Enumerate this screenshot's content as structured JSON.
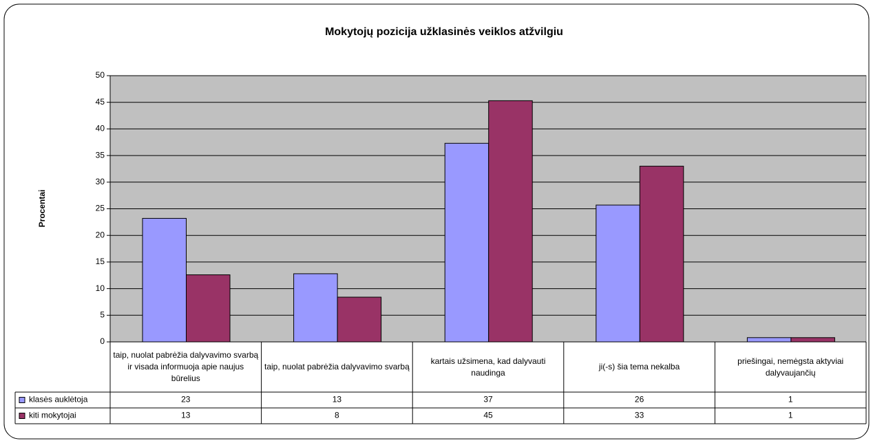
{
  "chart_data": {
    "type": "bar",
    "title": "Mokytojų pozicija užklasinės veiklos atžvilgiu",
    "y_label": "Procentai",
    "categories": [
      "taip, nuolat pabrėžia dalyvavimo svarbą ir visada informuoja apie naujus būrelius",
      "taip, nuolat pabrėžia dalyvavimo svarbą",
      "kartais užsimena, kad dalyvauti naudinga",
      "ji(-s) šia tema nekalba",
      "priešingai, nemėgsta aktyviai dalyvaujančių"
    ],
    "series": [
      {
        "name": "klasės auklėtoja",
        "color": "#9999ff",
        "values": [
          23.2,
          12.8,
          37.3,
          25.7,
          0.8
        ],
        "value_labels": [
          "23",
          "13",
          "37",
          "26",
          "1"
        ]
      },
      {
        "name": "kiti mokytojai",
        "color": "#993366",
        "values": [
          12.6,
          8.4,
          45.3,
          33.0,
          0.8
        ],
        "value_labels": [
          "13",
          "8",
          "45",
          "33",
          "1"
        ]
      }
    ],
    "ylim": [
      0,
      50
    ],
    "yticks": [
      0,
      5,
      10,
      15,
      20,
      25,
      30,
      35,
      40,
      45,
      50
    ],
    "grid": true,
    "plot_background": "#c0c0c0",
    "legend": "data-table"
  }
}
